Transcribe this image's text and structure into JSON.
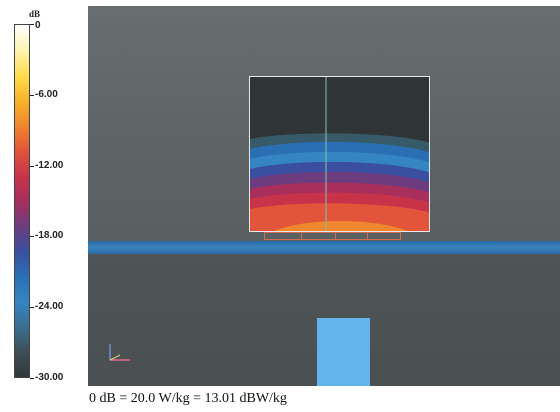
{
  "colorbar": {
    "unit": "dB",
    "top_label": "0",
    "ticks": [
      {
        "value": 0,
        "label": "0"
      },
      {
        "value": -6,
        "label": "-6.00"
      },
      {
        "value": -12,
        "label": "-12.00"
      },
      {
        "value": -18,
        "label": "-18.00"
      },
      {
        "value": -24,
        "label": "-24.00"
      },
      {
        "value": -30,
        "label": "-30.00"
      }
    ],
    "range": [
      -30,
      0
    ],
    "colors": [
      "#ffffff",
      "#fff3b0",
      "#ffdc50",
      "#f7b42a",
      "#f0862d",
      "#e2553a",
      "#c9334a",
      "#a82e5c",
      "#6d3c7e",
      "#3a4fa0",
      "#2a6fb4",
      "#3485c2",
      "#3a6f8f",
      "#3d4f56",
      "#30383a"
    ]
  },
  "scene": {
    "colors": {
      "background": "#5f6567",
      "band": "#3a84c0",
      "block": "#63b4ec",
      "box_border": "#e8e8e8",
      "source": "#d06a50"
    }
  },
  "caption": "0 dB = 20.0 W/kg = 13.01 dBW/kg"
}
